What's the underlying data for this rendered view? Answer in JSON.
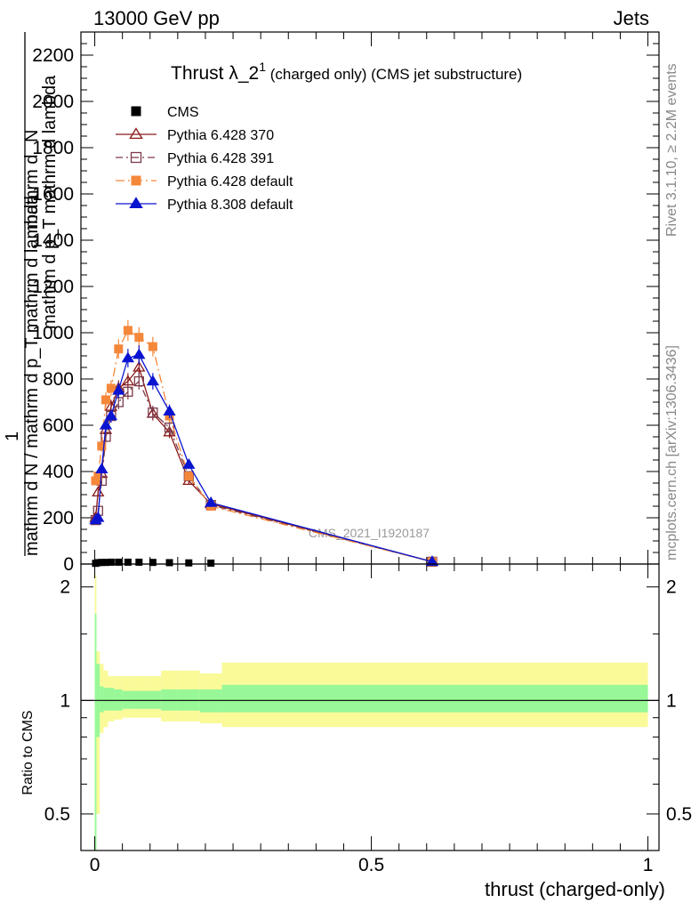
{
  "header": {
    "left": "13000 GeV pp",
    "right": "Jets"
  },
  "side_labels": {
    "rivet": "Rivet 3.1.10, ≥ 2.2M events",
    "mcplots": "mcplots.cern.ch [arXiv:1306.3436]"
  },
  "watermark": "CMS_2021_I1920187",
  "chart_data": {
    "type": "line",
    "title_main": "Thrust λ_2",
    "title_sup": "1",
    "title_rest": " (charged only) (CMS jet substructure)",
    "xlabel": "thrust (charged-only)",
    "ylabel_top": "1",
    "ylabel_bottom": "mathrm d N / mathrm d p_T mathrm d lambda",
    "ylabel_num": "mathrm d",
    "ylabel_num_tail": "N",
    "ylabel_den": "mathrm d p_T mathrm d lambda",
    "ratio_ylabel": "Ratio to CMS",
    "xlim": [
      -0.025,
      1.02
    ],
    "ylim": [
      0,
      2300
    ],
    "ratio_ylim": [
      0.4,
      2.3
    ],
    "x_ticks": [
      "0",
      "0.5",
      "1"
    ],
    "y_ticks": [
      "0",
      "200",
      "400",
      "600",
      "800",
      "1000",
      "1200",
      "1400",
      "1600",
      "1800",
      "2000",
      "2200"
    ],
    "ratio_ticks": [
      "0.5",
      "1",
      "2"
    ],
    "x": [
      0.0015,
      0.006,
      0.0125,
      0.02,
      0.0295,
      0.043,
      0.06,
      0.08,
      0.105,
      0.135,
      0.17,
      0.21,
      0.61
    ],
    "series": [
      {
        "name": "CMS",
        "color": "#000000",
        "marker": "square-filled",
        "dash": "none",
        "values": [
          3,
          6,
          7,
          7,
          8,
          8,
          8,
          8,
          7,
          6,
          5,
          4,
          0
        ]
      },
      {
        "name": "Pythia 6.428 370",
        "color": "#8b1a1a",
        "marker": "triangle-open",
        "dash": "none",
        "values": [
          200,
          310,
          390,
          580,
          680,
          760,
          790,
          850,
          650,
          570,
          360,
          260,
          10
        ]
      },
      {
        "name": "Pythia 6.428 391",
        "color": "#7a3b4a",
        "marker": "square-open",
        "dash": "8,4,2,4",
        "values": [
          190,
          230,
          360,
          550,
          640,
          700,
          745,
          790,
          655,
          590,
          380,
          255,
          10
        ]
      },
      {
        "name": "Pythia 6.428 default",
        "color": "#f5873a",
        "marker": "square-filled",
        "dash": "10,4,2,4",
        "values": [
          360,
          380,
          510,
          710,
          760,
          930,
          1010,
          980,
          940,
          640,
          380,
          250,
          10
        ]
      },
      {
        "name": "Pythia 8.308 default",
        "color": "#0a14d0",
        "marker": "triangle-filled",
        "dash": "none",
        "values": [
          190,
          200,
          410,
          600,
          640,
          750,
          890,
          905,
          790,
          660,
          430,
          265,
          10
        ]
      }
    ],
    "ratio_bands": {
      "edges": [
        0.0,
        0.003,
        0.009,
        0.016,
        0.024,
        0.035,
        0.05,
        0.07,
        0.09,
        0.12,
        0.15,
        0.19,
        0.23,
        1.0
      ],
      "inner_low": [
        0.37,
        0.8,
        0.93,
        0.94,
        0.94,
        0.94,
        0.95,
        0.95,
        0.95,
        0.94,
        0.94,
        0.93,
        0.93
      ],
      "inner_high": [
        1.7,
        1.25,
        1.09,
        1.08,
        1.08,
        1.07,
        1.06,
        1.06,
        1.06,
        1.07,
        1.07,
        1.07,
        1.1
      ],
      "outer_low": [
        0.37,
        0.5,
        0.82,
        0.85,
        0.88,
        0.89,
        0.9,
        0.9,
        0.9,
        0.88,
        0.88,
        0.87,
        0.85
      ],
      "outer_high": [
        2.15,
        1.35,
        1.25,
        1.2,
        1.16,
        1.16,
        1.16,
        1.16,
        1.16,
        1.2,
        1.2,
        1.18,
        1.26
      ],
      "inner_color": "#98f898",
      "outer_color": "#fafa99"
    }
  }
}
